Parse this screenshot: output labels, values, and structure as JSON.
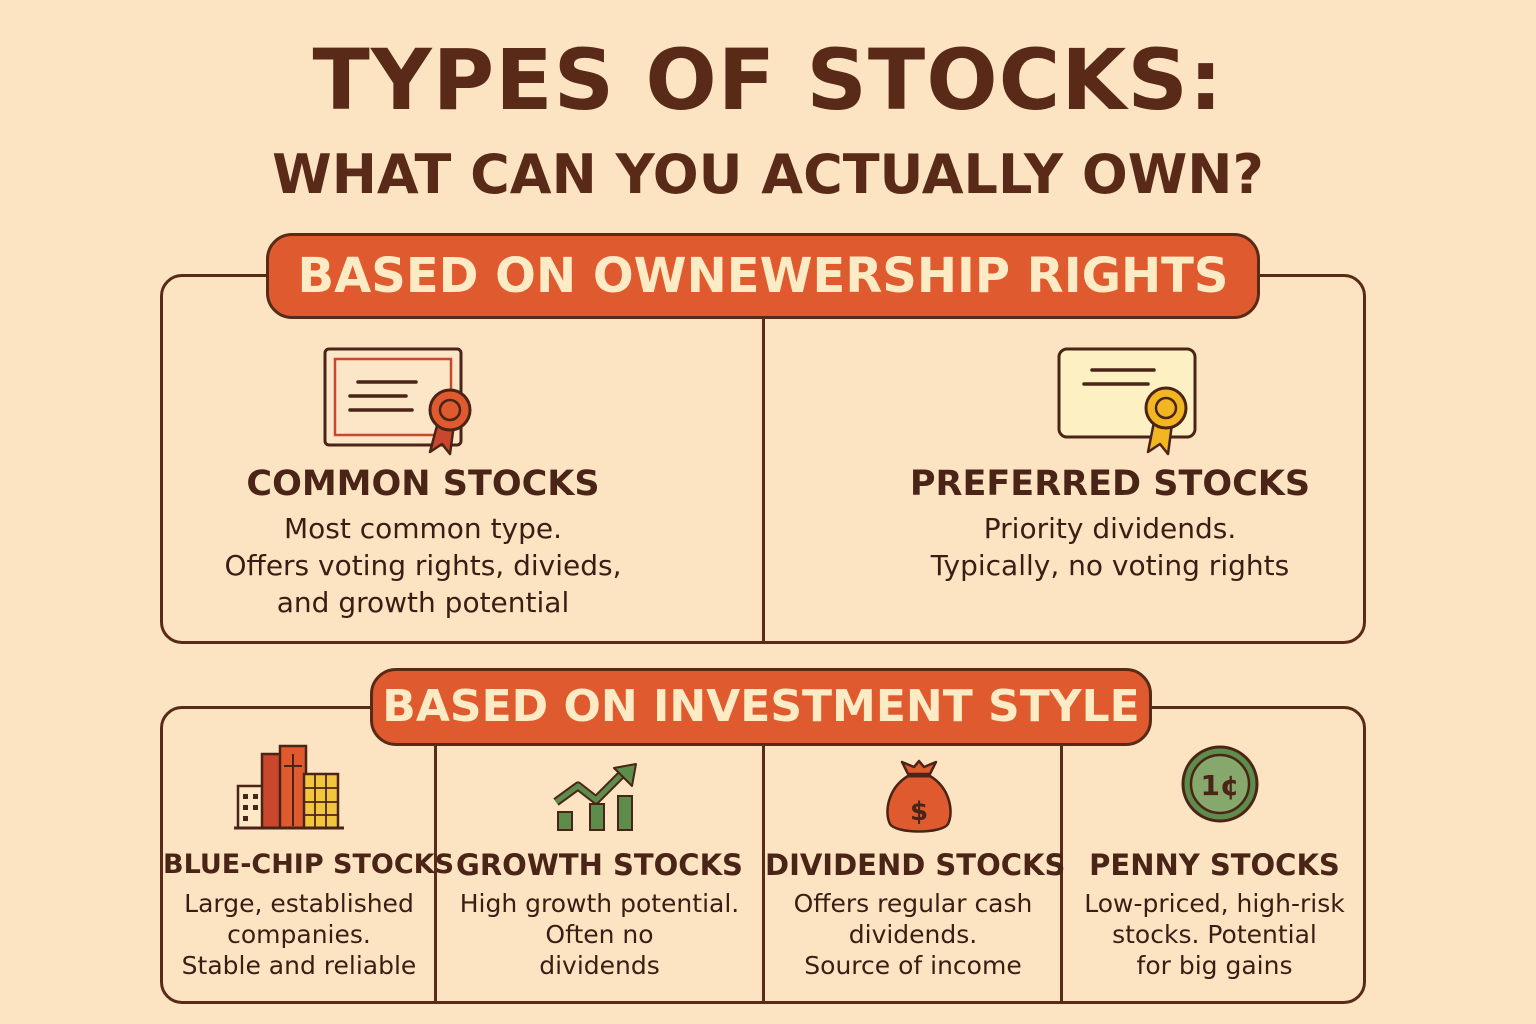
{
  "header": {
    "title": "TYPES OF STOCKS:",
    "subtitle": "WHAT CAN YOU ACTUALLY OWN?"
  },
  "ownership_section": {
    "banner": "BASED ON OWNEWERSHIP RIGHTS",
    "items": [
      {
        "title": "COMMON STOCKS",
        "description": "Most common type.\nOffers voting rights, divieds,\nand growth potential",
        "icon": "certificate-icon"
      },
      {
        "title": "PREFERRED STOCKS",
        "description": "Priority dividends.\nTypically, no voting rights",
        "icon": "certificate-icon"
      }
    ]
  },
  "style_section": {
    "banner": "BASED ON INVESTMENT STYLE",
    "items": [
      {
        "title": "BLUE-CHIP STOCKS",
        "description": "Large, established\ncompanies.\nStable and reliable",
        "icon": "buildings-icon"
      },
      {
        "title": "GROWTH STOCKS",
        "description": "High growth potential.\nOften no\ndividends",
        "icon": "growth-chart-icon"
      },
      {
        "title": "DIVIDEND STOCKS",
        "description": "Offers regular cash\ndividends.\nSource of income",
        "icon": "money-bag-icon",
        "icon_symbol": "$"
      },
      {
        "title": "PENNY STOCKS",
        "description": "Low-priced, high-risk\nstocks. Potential\nfor big gains",
        "icon": "penny-coin-icon",
        "icon_symbol": "1¢"
      }
    ]
  },
  "colors": {
    "background": "#fce3c2",
    "text": "#4a2416",
    "banner": "#df5a2e",
    "banner_text": "#fcebc4",
    "accent_green": "#5e8c4a",
    "accent_gold": "#f2b622"
  }
}
